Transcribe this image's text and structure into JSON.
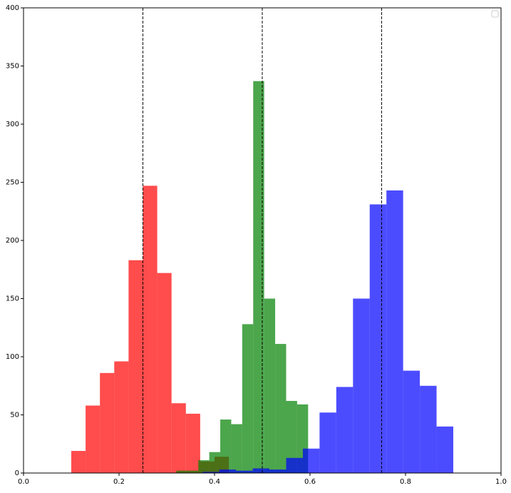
{
  "chart_data": {
    "type": "histogram",
    "xlim": [
      0,
      1
    ],
    "ylim": [
      0,
      400
    ],
    "xticks": [
      {
        "value": 0,
        "label": "0.0"
      },
      0.2,
      0.4,
      0.6,
      0.8,
      {
        "value": 1,
        "label": "1.0"
      }
    ],
    "yticks": [
      0,
      50,
      100,
      150,
      200,
      250,
      300,
      350,
      400
    ],
    "alpha": 0.7,
    "legend": "upper right",
    "vlines": [
      0.25,
      0.5,
      0.75
    ],
    "series": [
      {
        "color": "#ff0000",
        "bins": [
          0.1,
          0.13,
          0.16,
          0.19,
          0.22,
          0.25,
          0.28,
          0.31,
          0.34,
          0.37,
          0.4,
          0.43
        ],
        "values": [
          19,
          58,
          86,
          96,
          183,
          247,
          172,
          60,
          51,
          10,
          14
        ]
      },
      {
        "color": "#008000",
        "bins": [
          0.32,
          0.343,
          0.366,
          0.389,
          0.412,
          0.435,
          0.458,
          0.481,
          0.504,
          0.527,
          0.55,
          0.573,
          0.596
        ],
        "values": [
          2,
          2,
          11,
          18,
          46,
          42,
          128,
          337,
          150,
          111,
          62,
          59
        ]
      },
      {
        "color": "#0000ff",
        "bins": [
          0.375,
          0.41,
          0.445,
          0.48,
          0.515,
          0.55,
          0.585,
          0.62,
          0.655,
          0.69,
          0.725,
          0.76,
          0.795,
          0.83,
          0.865,
          0.9
        ],
        "values": [
          1,
          3,
          2,
          4,
          3,
          13,
          21,
          52,
          74,
          150,
          231,
          243,
          88,
          75,
          40
        ]
      }
    ]
  }
}
